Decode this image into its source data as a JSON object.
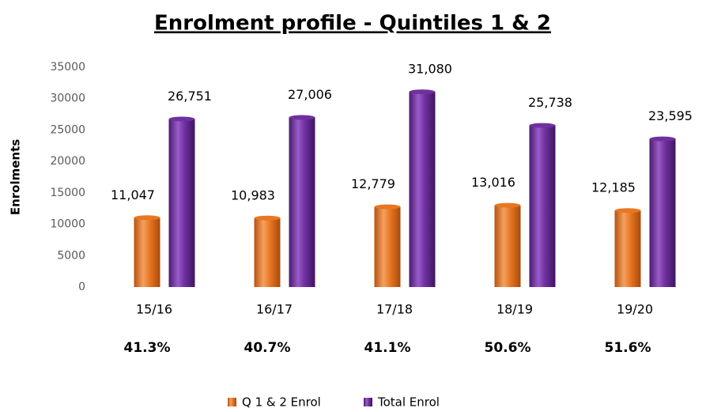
{
  "chart_data": {
    "type": "bar",
    "title": "Enrolment profile - Quintiles 1 & 2",
    "y_label": "Enrolments",
    "categories": [
      "15/16",
      "16/17",
      "17/18",
      "18/19",
      "19/20"
    ],
    "series": [
      {
        "name": "Q 1 & 2 Enrol",
        "color": "#e87722",
        "values": [
          11047,
          10983,
          12779,
          13016,
          12185
        ],
        "value_labels": [
          "11,047",
          "10,983",
          "12,779",
          "13,016",
          "12,185"
        ]
      },
      {
        "name": "Total Enrol",
        "color": "#7030a0",
        "values": [
          26751,
          27006,
          31080,
          25738,
          23595
        ],
        "value_labels": [
          "26,751",
          "27,006",
          "31,080",
          "25,738",
          "23,595"
        ]
      }
    ],
    "annotations": [
      "41.3%",
      "40.7%",
      "41.1%",
      "50.6%",
      "51.6%"
    ],
    "ylim": [
      0,
      35000
    ],
    "yticks": [
      0,
      5000,
      10000,
      15000,
      20000,
      25000,
      30000,
      35000
    ],
    "grid": false,
    "legend": "bottom"
  }
}
